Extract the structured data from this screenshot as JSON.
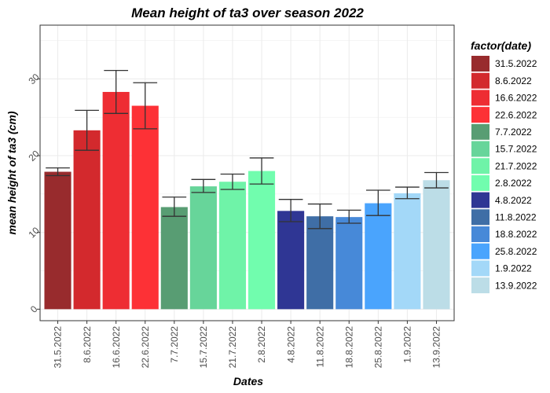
{
  "chart_data": {
    "type": "bar",
    "title": "Mean height of ta3 over season 2022",
    "xlabel": "Dates",
    "ylabel": "mean height of ta3 (cm)",
    "ylim": [
      -1.5,
      37
    ],
    "yticks": [
      0,
      10,
      20,
      30
    ],
    "legend_title": "factor(date)",
    "legend_position": "right",
    "grid": true,
    "categories": [
      "31.5.2022",
      "8.6.2022",
      "16.6.2022",
      "22.6.2022",
      "7.7.2022",
      "15.7.2022",
      "21.7.2022",
      "2.8.2022",
      "4.8.2022",
      "11.8.2022",
      "18.8.2022",
      "25.8.2022",
      "1.9.2022",
      "13.9.2022"
    ],
    "values": [
      17.9,
      23.3,
      28.3,
      26.5,
      13.3,
      16.0,
      16.6,
      18.0,
      12.8,
      12.1,
      12.0,
      13.8,
      15.1,
      16.8
    ],
    "error_low": [
      17.4,
      20.7,
      25.5,
      23.5,
      12.1,
      15.2,
      15.6,
      16.3,
      11.4,
      10.5,
      11.2,
      12.2,
      14.4,
      15.8
    ],
    "error_high": [
      18.4,
      25.9,
      31.1,
      29.5,
      14.6,
      16.9,
      17.6,
      19.7,
      14.3,
      13.7,
      12.9,
      15.5,
      15.9,
      17.8
    ],
    "colors": [
      "#982b2d",
      "#d3292d",
      "#ee2d33",
      "#fd3136",
      "#589d73",
      "#67d59a",
      "#6ff3a8",
      "#71fdae",
      "#2f3694",
      "#3f6ea6",
      "#4789d8",
      "#4aa4fd",
      "#a3d8f8",
      "#bcdde7"
    ]
  }
}
